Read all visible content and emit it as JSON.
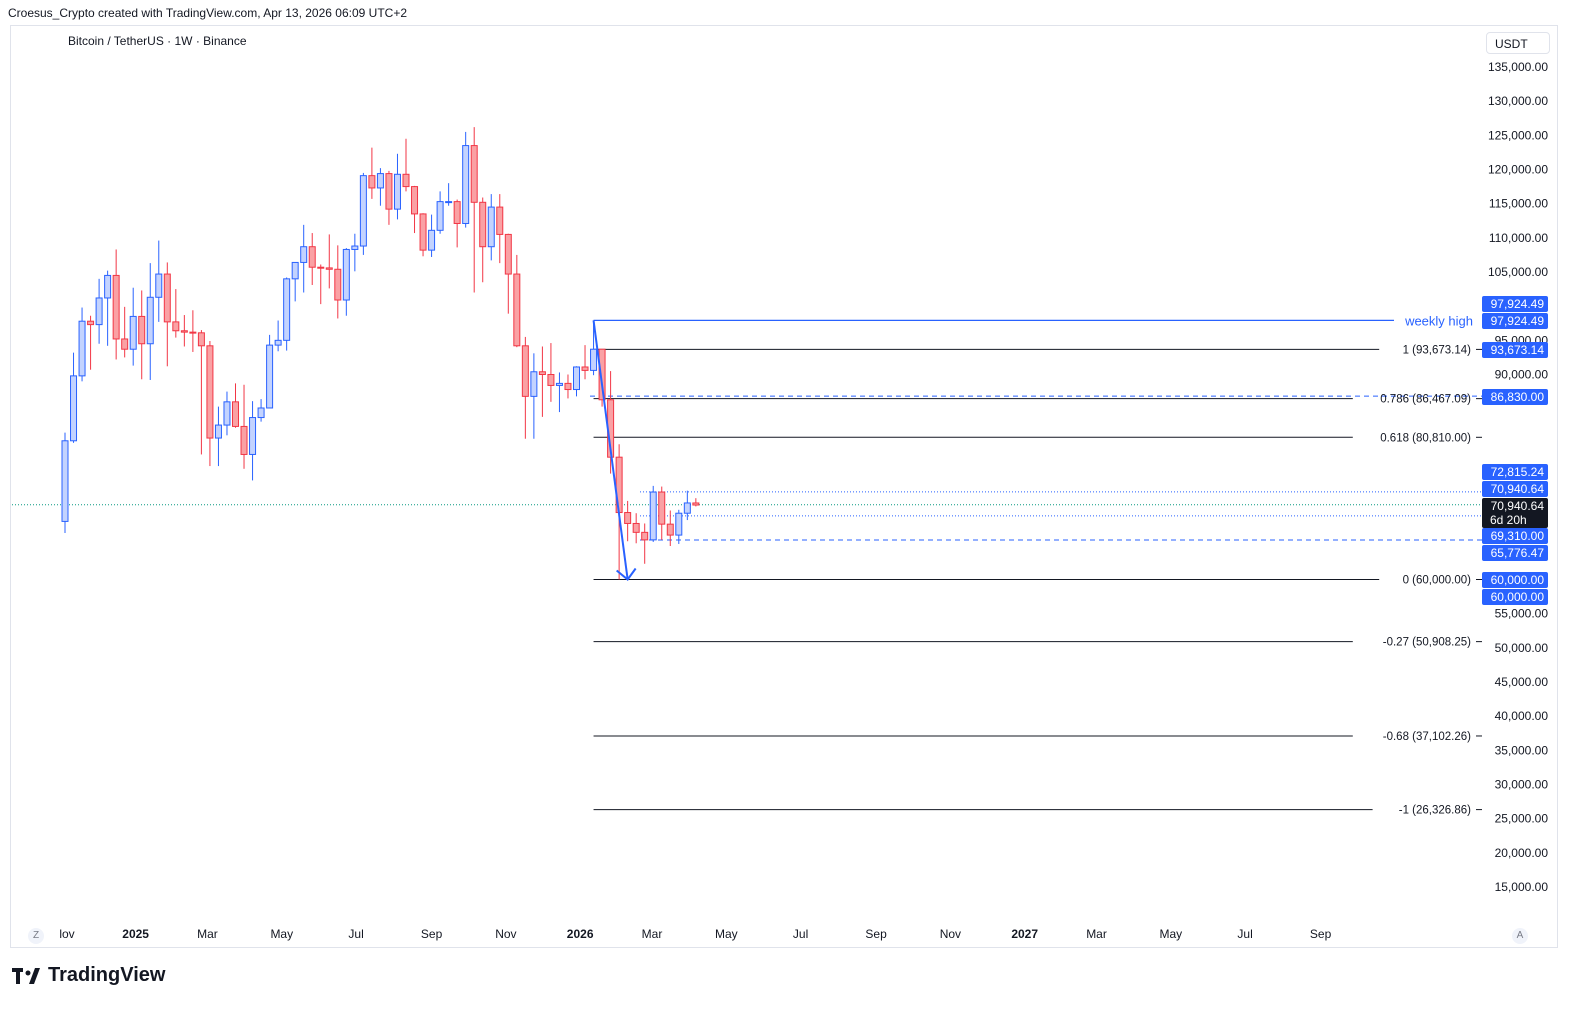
{
  "header": {
    "credit": "Croesus_Crypto created with TradingView.com, Apr 13, 2026 06:09 UTC+2"
  },
  "symbol": {
    "title": "Bitcoin / TetherUS · 1W · Binance"
  },
  "price_axis": {
    "currency": "USDT"
  },
  "brand": {
    "name": "TradingView"
  },
  "corner_buttons": {
    "left": "Z",
    "right": "A"
  },
  "colors": {
    "up": "#2962ff",
    "down": "#f23645",
    "up_fill": "#c3d3ff",
    "down_fill": "#faa1a4",
    "accent": "#2962ff"
  },
  "chart_data": {
    "type": "candlestick",
    "title": "Bitcoin / TetherUS · 1W · Binance",
    "y_axis": {
      "unit": "USDT",
      "range": [
        10000,
        138000
      ],
      "ticks": [
        15000,
        20000,
        25000,
        30000,
        35000,
        40000,
        45000,
        50000,
        55000,
        90000,
        95000,
        100000,
        105000,
        110000,
        115000,
        120000,
        125000,
        130000,
        135000
      ],
      "tick_labels": [
        "15,000.00",
        "20,000.00",
        "25,000.00",
        "30,000.00",
        "35,000.00",
        "40,000.00",
        "45,000.00",
        "50,000.00",
        "55,000.00",
        "90,000.00",
        "95,000.00",
        "",
        "105,000.00",
        "110,000.00",
        "115,000.00",
        "120,000.00",
        "125,000.00",
        "130,000.00",
        "135,000.00"
      ]
    },
    "x_axis": {
      "labels": [
        {
          "text": "lov",
          "date": "2024-11-01",
          "bold": false
        },
        {
          "text": "2025",
          "date": "2025-01-01",
          "bold": true
        },
        {
          "text": "Mar",
          "date": "2025-03-01",
          "bold": false
        },
        {
          "text": "May",
          "date": "2025-05-01",
          "bold": false
        },
        {
          "text": "Jul",
          "date": "2025-07-01",
          "bold": false
        },
        {
          "text": "Sep",
          "date": "2025-09-01",
          "bold": false
        },
        {
          "text": "Nov",
          "date": "2025-11-01",
          "bold": false
        },
        {
          "text": "2026",
          "date": "2026-01-01",
          "bold": true
        },
        {
          "text": "Mar",
          "date": "2026-03-01",
          "bold": false
        },
        {
          "text": "May",
          "date": "2026-05-01",
          "bold": false
        },
        {
          "text": "Jul",
          "date": "2026-07-01",
          "bold": false
        },
        {
          "text": "Sep",
          "date": "2026-09-01",
          "bold": false
        },
        {
          "text": "Nov",
          "date": "2026-11-01",
          "bold": false
        },
        {
          "text": "2027",
          "date": "2027-01-01",
          "bold": true
        },
        {
          "text": "Mar",
          "date": "2027-03-01",
          "bold": false
        },
        {
          "text": "May",
          "date": "2027-05-01",
          "bold": false
        },
        {
          "text": "Jul",
          "date": "2027-07-01",
          "bold": false
        },
        {
          "text": "Sep",
          "date": "2027-09-01",
          "bold": false
        }
      ]
    },
    "candles": [
      {
        "date": "2024-11-04",
        "o": 68500,
        "h": 81500,
        "l": 66800,
        "c": 80300
      },
      {
        "date": "2024-11-11",
        "o": 80300,
        "h": 93200,
        "l": 80000,
        "c": 89800
      },
      {
        "date": "2024-11-18",
        "o": 89800,
        "h": 99800,
        "l": 89000,
        "c": 97800
      },
      {
        "date": "2024-11-25",
        "o": 97800,
        "h": 98600,
        "l": 90700,
        "c": 97300
      },
      {
        "date": "2024-12-02",
        "o": 97300,
        "h": 104000,
        "l": 94500,
        "c": 101200
      },
      {
        "date": "2024-12-09",
        "o": 101200,
        "h": 105200,
        "l": 94200,
        "c": 104500
      },
      {
        "date": "2024-12-16",
        "o": 104500,
        "h": 108300,
        "l": 92200,
        "c": 95200
      },
      {
        "date": "2024-12-23",
        "o": 95200,
        "h": 99900,
        "l": 92500,
        "c": 93700
      },
      {
        "date": "2024-12-30",
        "o": 93700,
        "h": 102700,
        "l": 91300,
        "c": 98500
      },
      {
        "date": "2025-01-06",
        "o": 98500,
        "h": 102300,
        "l": 89300,
        "c": 94500
      },
      {
        "date": "2025-01-13",
        "o": 94500,
        "h": 106300,
        "l": 89200,
        "c": 101300
      },
      {
        "date": "2025-01-20",
        "o": 101300,
        "h": 109600,
        "l": 97700,
        "c": 104700
      },
      {
        "date": "2025-01-27",
        "o": 104700,
        "h": 106400,
        "l": 91200,
        "c": 97700
      },
      {
        "date": "2025-02-03",
        "o": 97700,
        "h": 102500,
        "l": 95400,
        "c": 96400
      },
      {
        "date": "2025-02-10",
        "o": 96400,
        "h": 98700,
        "l": 94100,
        "c": 96200
      },
      {
        "date": "2025-02-17",
        "o": 96200,
        "h": 99400,
        "l": 93300,
        "c": 96100
      },
      {
        "date": "2025-02-24",
        "o": 96100,
        "h": 96500,
        "l": 78300,
        "c": 94200
      },
      {
        "date": "2025-03-03",
        "o": 94200,
        "h": 94900,
        "l": 76600,
        "c": 80700
      },
      {
        "date": "2025-03-10",
        "o": 80700,
        "h": 85300,
        "l": 76600,
        "c": 82600
      },
      {
        "date": "2025-03-17",
        "o": 82600,
        "h": 87500,
        "l": 81100,
        "c": 86000
      },
      {
        "date": "2025-03-24",
        "o": 86000,
        "h": 88700,
        "l": 82200,
        "c": 82400
      },
      {
        "date": "2025-03-31",
        "o": 82400,
        "h": 88500,
        "l": 76200,
        "c": 78300
      },
      {
        "date": "2025-04-07",
        "o": 78300,
        "h": 86100,
        "l": 74500,
        "c": 83700
      },
      {
        "date": "2025-04-14",
        "o": 83700,
        "h": 86400,
        "l": 83100,
        "c": 85100
      },
      {
        "date": "2025-04-21",
        "o": 85100,
        "h": 95800,
        "l": 85100,
        "c": 94300
      },
      {
        "date": "2025-04-28",
        "o": 94300,
        "h": 97900,
        "l": 93400,
        "c": 95000
      },
      {
        "date": "2025-05-05",
        "o": 95000,
        "h": 104200,
        "l": 93500,
        "c": 104000
      },
      {
        "date": "2025-05-12",
        "o": 104000,
        "h": 105800,
        "l": 100700,
        "c": 106400
      },
      {
        "date": "2025-05-19",
        "o": 106400,
        "h": 111900,
        "l": 102000,
        "c": 108700
      },
      {
        "date": "2025-05-26",
        "o": 108700,
        "h": 110700,
        "l": 103100,
        "c": 105700
      },
      {
        "date": "2025-06-02",
        "o": 105700,
        "h": 106100,
        "l": 100300,
        "c": 105600
      },
      {
        "date": "2025-06-09",
        "o": 105600,
        "h": 110500,
        "l": 102600,
        "c": 105400
      },
      {
        "date": "2025-06-16",
        "o": 105400,
        "h": 108900,
        "l": 98200,
        "c": 100900
      },
      {
        "date": "2025-06-23",
        "o": 100900,
        "h": 108500,
        "l": 98600,
        "c": 108300
      },
      {
        "date": "2025-06-30",
        "o": 108300,
        "h": 110600,
        "l": 105100,
        "c": 108800
      },
      {
        "date": "2025-07-07",
        "o": 108800,
        "h": 119500,
        "l": 107500,
        "c": 119100
      },
      {
        "date": "2025-07-14",
        "o": 119100,
        "h": 123200,
        "l": 115700,
        "c": 117300
      },
      {
        "date": "2025-07-21",
        "o": 117300,
        "h": 120200,
        "l": 114700,
        "c": 119400
      },
      {
        "date": "2025-07-28",
        "o": 119400,
        "h": 119800,
        "l": 111900,
        "c": 114200
      },
      {
        "date": "2025-08-04",
        "o": 114200,
        "h": 122300,
        "l": 112700,
        "c": 119300
      },
      {
        "date": "2025-08-11",
        "o": 119300,
        "h": 124500,
        "l": 116800,
        "c": 117500
      },
      {
        "date": "2025-08-18",
        "o": 117500,
        "h": 117600,
        "l": 110700,
        "c": 113500
      },
      {
        "date": "2025-08-25",
        "o": 113500,
        "h": 113600,
        "l": 107300,
        "c": 108200
      },
      {
        "date": "2025-09-01",
        "o": 108200,
        "h": 113400,
        "l": 107200,
        "c": 111100
      },
      {
        "date": "2025-09-08",
        "o": 111100,
        "h": 116800,
        "l": 110600,
        "c": 115300
      },
      {
        "date": "2025-09-15",
        "o": 115300,
        "h": 118000,
        "l": 114700,
        "c": 115300
      },
      {
        "date": "2025-09-22",
        "o": 115300,
        "h": 115600,
        "l": 108600,
        "c": 112100
      },
      {
        "date": "2025-09-29",
        "o": 112100,
        "h": 125500,
        "l": 111500,
        "c": 123500
      },
      {
        "date": "2025-10-06",
        "o": 123500,
        "h": 126200,
        "l": 102000,
        "c": 115200
      },
      {
        "date": "2025-10-13",
        "o": 115200,
        "h": 115900,
        "l": 103500,
        "c": 108700
      },
      {
        "date": "2025-10-20",
        "o": 108700,
        "h": 116400,
        "l": 106700,
        "c": 114500
      },
      {
        "date": "2025-10-27",
        "o": 114500,
        "h": 116400,
        "l": 106300,
        "c": 110500
      },
      {
        "date": "2025-11-03",
        "o": 110500,
        "h": 110600,
        "l": 98900,
        "c": 104700
      },
      {
        "date": "2025-11-10",
        "o": 104700,
        "h": 107500,
        "l": 94000,
        "c": 94200
      },
      {
        "date": "2025-11-17",
        "o": 94200,
        "h": 95500,
        "l": 80600,
        "c": 86800
      },
      {
        "date": "2025-11-24",
        "o": 86800,
        "h": 93100,
        "l": 80600,
        "c": 90400
      },
      {
        "date": "2025-12-01",
        "o": 90400,
        "h": 94100,
        "l": 83800,
        "c": 90000
      },
      {
        "date": "2025-12-08",
        "o": 90000,
        "h": 94600,
        "l": 86000,
        "c": 88400
      },
      {
        "date": "2025-12-15",
        "o": 88400,
        "h": 90300,
        "l": 84500,
        "c": 88700
      },
      {
        "date": "2025-12-22",
        "o": 88700,
        "h": 90000,
        "l": 86500,
        "c": 87800
      },
      {
        "date": "2025-12-29",
        "o": 87800,
        "h": 91200,
        "l": 86800,
        "c": 91100
      },
      {
        "date": "2026-01-05",
        "o": 91100,
        "h": 94300,
        "l": 89300,
        "c": 90600
      },
      {
        "date": "2026-01-12",
        "o": 90600,
        "h": 97900,
        "l": 89900,
        "c": 93700
      },
      {
        "date": "2026-01-19",
        "o": 93700,
        "h": 93700,
        "l": 85300,
        "c": 86300
      },
      {
        "date": "2026-01-26",
        "o": 86300,
        "h": 90500,
        "l": 75500,
        "c": 77900
      },
      {
        "date": "2026-02-02",
        "o": 77900,
        "h": 79800,
        "l": 60000,
        "c": 69800
      },
      {
        "date": "2026-02-09",
        "o": 69800,
        "h": 71500,
        "l": 65600,
        "c": 68200
      },
      {
        "date": "2026-02-16",
        "o": 68200,
        "h": 69700,
        "l": 65300,
        "c": 66900
      },
      {
        "date": "2026-02-23",
        "o": 66900,
        "h": 68200,
        "l": 62300,
        "c": 65800
      },
      {
        "date": "2026-03-02",
        "o": 65800,
        "h": 73700,
        "l": 65500,
        "c": 72800
      },
      {
        "date": "2026-03-09",
        "o": 72800,
        "h": 73600,
        "l": 65800,
        "c": 68100
      },
      {
        "date": "2026-03-16",
        "o": 68100,
        "h": 70100,
        "l": 64900,
        "c": 66500
      },
      {
        "date": "2026-03-23",
        "o": 66500,
        "h": 70200,
        "l": 65200,
        "c": 69700
      },
      {
        "date": "2026-03-30",
        "o": 69700,
        "h": 73000,
        "l": 68700,
        "c": 71200
      },
      {
        "date": "2026-04-06",
        "o": 71200,
        "h": 71900,
        "l": 70700,
        "c": 70900
      }
    ],
    "annotations": {
      "weekly_high": {
        "label": "weekly high",
        "price": 97924.49,
        "start": "2026-01-12"
      },
      "arrow": {
        "from": {
          "date": "2026-01-12",
          "price": 97924.49
        },
        "to": {
          "date": "2026-02-09",
          "price": 60000
        }
      },
      "fib_levels": [
        {
          "ratio": "1",
          "price": 93673.14,
          "label": "1 (93,673.14)",
          "y_label": "93,673.14"
        },
        {
          "ratio": "0.786",
          "price": 86467.09,
          "label": "0.786 (86,467.09)",
          "y_label": "86,830.00"
        },
        {
          "ratio": "0.618",
          "price": 80810.0,
          "label": "0.618 (80,810.00)",
          "y_label": ""
        },
        {
          "ratio": "0",
          "price": 60000.0,
          "label": "0 (60,000.00)",
          "y_label": "60,000.00"
        },
        {
          "ratio": "-0.27",
          "price": 50908.25,
          "label": "-0.27 (50,908.25)",
          "y_label": ""
        },
        {
          "ratio": "-0.68",
          "price": 37102.26,
          "label": "-0.68 (37,102.26)",
          "y_label": ""
        },
        {
          "ratio": "-1",
          "price": 26326.86,
          "label": "-1 (26,326.86)",
          "y_label": ""
        }
      ],
      "h_lines": [
        {
          "price": 72815.24,
          "style": "dotted"
        },
        {
          "price": 69310.0,
          "style": "dotted"
        },
        {
          "price": 65776.47,
          "style": "dashed"
        },
        {
          "price": 86830.0,
          "style": "dashed"
        }
      ],
      "current": {
        "price": 70940.64,
        "price_label": "70,940.64",
        "countdown": "6d 20h"
      },
      "price_tags": [
        {
          "price": 97924.49,
          "text": "97,924.49",
          "kind": "blue"
        },
        {
          "price": 97924.49,
          "text": "97,924.49",
          "kind": "blue"
        },
        {
          "price": 93673.14,
          "text": "93,673.14",
          "kind": "blue"
        },
        {
          "price": 86830.0,
          "text": "86,830.00",
          "kind": "blue"
        },
        {
          "price": 72815.24,
          "text": "72,815.24",
          "kind": "blue"
        },
        {
          "price": 70940.64,
          "text": "70,940.64",
          "kind": "blue"
        },
        {
          "price": 69310.0,
          "text": "69,310.00",
          "kind": "blue"
        },
        {
          "price": 65776.47,
          "text": "65,776.47",
          "kind": "blue"
        },
        {
          "price": 60000.0,
          "text": "60,000.00",
          "kind": "blue"
        },
        {
          "price": 60000.0,
          "text": "60,000.00",
          "kind": "blue"
        }
      ]
    }
  }
}
